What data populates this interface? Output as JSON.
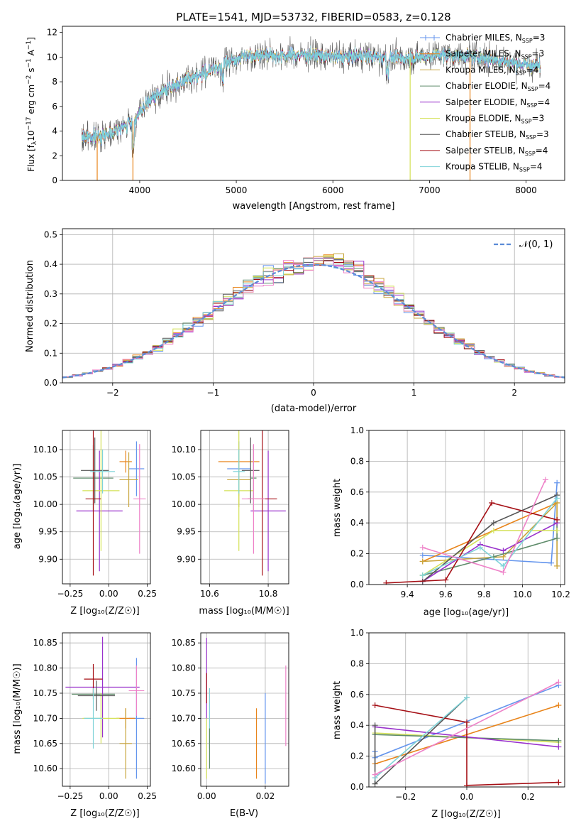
{
  "colors": {
    "Chabrier MILES": "#6495ed",
    "Salpeter MILES": "#e8841a",
    "Kroupa MILES": "#c8a53c",
    "Chabrier ELODIE": "#5f8c6b",
    "Salpeter ELODIE": "#9932cc",
    "Kroupa ELODIE": "#d4e157",
    "Chabrier STELIB": "#555555",
    "Salpeter STELIB": "#a50f15",
    "Kroupa STELIB": "#7fd3d8",
    "kroupa_miles_weights": "#ee82c8",
    "gauss": "#5b8bd6",
    "grid": "#b0b0b0"
  },
  "chart_data": [
    {
      "id": "spectrum",
      "type": "line",
      "title": "PLATE=1541, MJD=53732, FIBERID=0583, z=0.128",
      "xlabel": "wavelength [Angstrom, rest frame]",
      "ylabel": "Flux [f_λ10^-17 erg cm^-2 s^-1 A^-1]",
      "xlim": [
        3200,
        8400
      ],
      "ylim": [
        0,
        12.5
      ],
      "xticks": [
        "4000",
        "5000",
        "6000",
        "7000",
        "8000"
      ],
      "yticks": [
        "0",
        "2",
        "4",
        "6",
        "8",
        "10",
        "12"
      ],
      "grid": false,
      "legend_position": "upper-right",
      "legend": [
        {
          "prefix": "Chabrier MILES, N",
          "sub": "SSP",
          "suffix": "=3"
        },
        {
          "prefix": "Salpeter MILES, N",
          "sub": "SSP",
          "suffix": "=3"
        },
        {
          "prefix": "Kroupa MILES, N",
          "sub": "SSP",
          "suffix": "=4"
        },
        {
          "prefix": "Chabrier ELODIE, N",
          "sub": "SSP",
          "suffix": "=4"
        },
        {
          "prefix": "Salpeter ELODIE, N",
          "sub": "SSP",
          "suffix": "=4"
        },
        {
          "prefix": "Kroupa ELODIE, N",
          "sub": "SSP",
          "suffix": "=3"
        },
        {
          "prefix": "Chabrier STELIB, N",
          "sub": "SSP",
          "suffix": "=3"
        },
        {
          "prefix": "Salpeter STELIB, N",
          "sub": "SSP",
          "suffix": "=4"
        },
        {
          "prefix": "Kroupa STELIB, N",
          "sub": "SSP",
          "suffix": "=4"
        }
      ],
      "continuum": {
        "x": [
          3400,
          3600,
          3800,
          3950,
          4100,
          4300,
          4500,
          4700,
          4900,
          5100,
          5300,
          5500,
          5700,
          5900,
          6100,
          6300,
          6500,
          6700,
          6900,
          7100,
          7300,
          7500,
          7700,
          7900,
          8150
        ],
        "y": [
          3.5,
          3.6,
          4.2,
          4.9,
          6.5,
          7.5,
          8.2,
          8.8,
          9.5,
          10.2,
          10.2,
          10.1,
          10.2,
          10.1,
          10.0,
          10.1,
          10.0,
          9.9,
          10.0,
          10.2,
          10.1,
          10.0,
          9.8,
          9.5,
          9.2
        ]
      },
      "dropouts": [
        {
          "x": 3560,
          "series": "Salpeter MILES"
        },
        {
          "x": 3930,
          "series": "Salpeter MILES"
        },
        {
          "x": 6800,
          "series": "Kroupa ELODIE"
        },
        {
          "x": 7420,
          "series": "Salpeter MILES"
        }
      ]
    },
    {
      "id": "residuals",
      "type": "step",
      "xlabel": "(data-model)/error",
      "ylabel": "Normed distribution",
      "xlim": [
        -2.5,
        2.5
      ],
      "ylim": [
        0,
        0.52
      ],
      "xticks": [
        {
          "v": -2,
          "label": "−2"
        },
        {
          "v": -1,
          "label": "−1"
        },
        {
          "v": 0,
          "label": "0"
        },
        {
          "v": 1,
          "label": "1"
        },
        {
          "v": 2,
          "label": "2"
        }
      ],
      "yticks": [
        {
          "v": 0,
          "label": "0.0"
        },
        {
          "v": 0.1,
          "label": "0.1"
        },
        {
          "v": 0.2,
          "label": "0.2"
        },
        {
          "v": 0.3,
          "label": "0.3"
        },
        {
          "v": 0.4,
          "label": "0.4"
        },
        {
          "v": 0.5,
          "label": "0.5"
        }
      ],
      "grid": true,
      "bin_width": 0.1,
      "legend_label": "𝒩(0, 1)",
      "legend_position": "upper-right",
      "reference_curve": "gaussian mean 0, sigma 1"
    },
    {
      "id": "age_vs_Z",
      "type": "errorbar",
      "xlabel": "Z [log₁₀(Z/Z☉)]",
      "ylabel": "age  [log₁₀(age/yr)]",
      "xlim": [
        -0.3,
        0.27
      ],
      "ylim": [
        9.855,
        10.135
      ],
      "xticks": [
        {
          "v": -0.25,
          "label": "−0.25"
        },
        {
          "v": 0,
          "label": "0.00"
        },
        {
          "v": 0.25,
          "label": "0.25"
        }
      ],
      "yticks": [
        {
          "v": 9.9,
          "label": "9.90"
        },
        {
          "v": 9.95,
          "label": "9.95"
        },
        {
          "v": 10,
          "label": "10.00"
        },
        {
          "v": 10.05,
          "label": "10.05"
        },
        {
          "v": 10.1,
          "label": "10.10"
        }
      ],
      "grid": true,
      "points": [
        {
          "series": "Chabrier MILES",
          "x": 0.18,
          "xerr": 0.05,
          "y": 10.065,
          "yerr": 0.05
        },
        {
          "series": "Salpeter MILES",
          "x": 0.11,
          "xerr": 0.04,
          "y": 10.078,
          "yerr": 0.02
        },
        {
          "series": "Kroupa MILES",
          "x": 0.13,
          "xerr": 0.06,
          "y": 10.045,
          "yerr": 0.05
        },
        {
          "series": "Chabrier ELODIE",
          "x": -0.1,
          "xerr": 0.13,
          "y": 10.048,
          "yerr": 0.06
        },
        {
          "series": "Salpeter ELODIE",
          "x": -0.06,
          "xerr": 0.15,
          "y": 9.988,
          "yerr": 0.11
        },
        {
          "series": "Kroupa ELODIE",
          "x": -0.05,
          "xerr": 0.12,
          "y": 10.025,
          "yerr": 0.11
        },
        {
          "series": "Chabrier STELIB",
          "x": -0.09,
          "xerr": 0.09,
          "y": 10.062,
          "yerr": 0.06
        },
        {
          "series": "Salpeter STELIB",
          "x": -0.1,
          "xerr": 0.05,
          "y": 10.01,
          "yerr": 0.14
        },
        {
          "series": "Kroupa STELIB",
          "x": -0.04,
          "xerr": 0.08,
          "y": 10.06,
          "yerr": 0.04
        },
        {
          "series": "kroupa_miles_weights",
          "x": 0.2,
          "xerr": 0.04,
          "y": 10.01,
          "yerr": 0.1
        }
      ]
    },
    {
      "id": "age_vs_mass",
      "type": "errorbar",
      "xlabel": "mass [log₁₀(M/M☉)]",
      "ylabel": "",
      "xlim": [
        10.57,
        10.87
      ],
      "ylim": [
        9.855,
        10.135
      ],
      "xticks": [
        {
          "v": 10.6,
          "label": "10.6"
        },
        {
          "v": 10.8,
          "label": "10.8"
        }
      ],
      "yticks": [
        {
          "v": 9.9,
          "label": "9.90"
        },
        {
          "v": 9.95,
          "label": "9.95"
        },
        {
          "v": 10,
          "label": "10.00"
        },
        {
          "v": 10.05,
          "label": "10.05"
        },
        {
          "v": 10.1,
          "label": "10.10"
        }
      ],
      "grid": true,
      "points": [
        {
          "series": "Chabrier MILES",
          "x": 10.7,
          "xerr": 0.04,
          "y": 10.065,
          "yerr": 0.05
        },
        {
          "series": "Salpeter MILES",
          "x": 10.7,
          "xerr": 0.07,
          "y": 10.078,
          "yerr": 0.02
        },
        {
          "series": "Kroupa MILES",
          "x": 10.7,
          "xerr": 0.04,
          "y": 10.045,
          "yerr": 0.05
        },
        {
          "series": "Chabrier ELODIE",
          "x": 10.75,
          "xerr": 0.01,
          "y": 10.048,
          "yerr": 0.06
        },
        {
          "series": "Salpeter ELODIE",
          "x": 10.8,
          "xerr": 0.06,
          "y": 9.988,
          "yerr": 0.11
        },
        {
          "series": "Kroupa ELODIE",
          "x": 10.7,
          "xerr": 0.05,
          "y": 10.025,
          "yerr": 0.11
        },
        {
          "series": "Chabrier STELIB",
          "x": 10.74,
          "xerr": 0.03,
          "y": 10.062,
          "yerr": 0.06
        },
        {
          "series": "Salpeter STELIB",
          "x": 10.78,
          "xerr": 0.05,
          "y": 10.01,
          "yerr": 0.14
        },
        {
          "series": "Kroupa STELIB",
          "x": 10.7,
          "xerr": 0.02,
          "y": 10.06,
          "yerr": 0.04
        },
        {
          "series": "kroupa_miles_weights",
          "x": 10.75,
          "xerr": 0.04,
          "y": 10.01,
          "yerr": 0.1
        }
      ]
    },
    {
      "id": "mass_weight_vs_age",
      "type": "line",
      "xlabel": "age  [log₁₀(age/yr)]",
      "ylabel": "mass weight",
      "xlim": [
        9.2,
        10.22
      ],
      "ylim": [
        0,
        1.0
      ],
      "xticks": [
        {
          "v": 9.4,
          "label": "9.4"
        },
        {
          "v": 9.6,
          "label": "9.6"
        },
        {
          "v": 9.8,
          "label": "9.8"
        },
        {
          "v": 10.0,
          "label": "10.0"
        },
        {
          "v": 10.2,
          "label": "10.2"
        }
      ],
      "yticks": [
        {
          "v": 0,
          "label": "0.0"
        },
        {
          "v": 0.2,
          "label": "0.2"
        },
        {
          "v": 0.4,
          "label": "0.4"
        },
        {
          "v": 0.6,
          "label": "0.6"
        },
        {
          "v": 0.8,
          "label": "0.8"
        },
        {
          "v": 1.0,
          "label": "1.0"
        }
      ],
      "grid": true,
      "series": [
        {
          "name": "Chabrier MILES",
          "x": [
            9.48,
            10.15,
            10.18
          ],
          "y": [
            0.19,
            0.14,
            0.66
          ]
        },
        {
          "name": "Salpeter MILES",
          "x": [
            9.48,
            10.18,
            10.18
          ],
          "y": [
            0.15,
            0.53,
            0.12
          ]
        },
        {
          "name": "Kroupa MILES",
          "x": [
            9.48,
            9.9,
            10.18,
            10.18
          ],
          "y": [
            0.15,
            0.18,
            0.53,
            0.12
          ]
        },
        {
          "name": "Chabrier ELODIE",
          "x": [
            9.48,
            9.85,
            10.18,
            10.18
          ],
          "y": [
            0.06,
            0.18,
            0.3,
            0.4
          ]
        },
        {
          "name": "Salpeter ELODIE",
          "x": [
            9.48,
            9.78,
            9.9,
            10.18
          ],
          "y": [
            0.02,
            0.26,
            0.22,
            0.4
          ]
        },
        {
          "name": "Kroupa ELODIE",
          "x": [
            9.48,
            9.85,
            10.18
          ],
          "y": [
            0.06,
            0.35,
            0.35
          ]
        },
        {
          "name": "Chabrier STELIB",
          "x": [
            9.48,
            9.85,
            10.18
          ],
          "y": [
            0.02,
            0.4,
            0.58
          ]
        },
        {
          "name": "Salpeter STELIB",
          "x": [
            9.29,
            9.6,
            9.84,
            10.18
          ],
          "y": [
            0.01,
            0.03,
            0.53,
            0.42
          ]
        },
        {
          "name": "Kroupa STELIB",
          "x": [
            9.48,
            9.78,
            9.9,
            10.18
          ],
          "y": [
            0.06,
            0.24,
            0.12,
            0.56
          ]
        },
        {
          "name": "kroupa_miles_weights",
          "x": [
            9.48,
            9.9,
            10.12
          ],
          "y": [
            0.24,
            0.08,
            0.68
          ]
        }
      ]
    },
    {
      "id": "mass_vs_Z",
      "type": "errorbar",
      "xlabel": "Z [log₁₀(Z/Z☉)]",
      "ylabel": "mass [log₁₀(M/M☉)]",
      "xlim": [
        -0.3,
        0.27
      ],
      "ylim": [
        10.565,
        10.87
      ],
      "xticks": [
        {
          "v": -0.25,
          "label": "−0.25"
        },
        {
          "v": 0,
          "label": "0.00"
        },
        {
          "v": 0.25,
          "label": "0.25"
        }
      ],
      "yticks": [
        {
          "v": 10.6,
          "label": "10.60"
        },
        {
          "v": 10.65,
          "label": "10.65"
        },
        {
          "v": 10.7,
          "label": "10.70"
        },
        {
          "v": 10.75,
          "label": "10.75"
        },
        {
          "v": 10.8,
          "label": "10.80"
        },
        {
          "v": 10.85,
          "label": "10.85"
        }
      ],
      "grid": true,
      "points": [
        {
          "series": "Chabrier MILES",
          "x": 0.18,
          "xerr": 0.05,
          "y": 10.7,
          "yerr": 0.12
        },
        {
          "series": "Salpeter MILES",
          "x": 0.11,
          "xerr": 0.06,
          "y": 10.7,
          "yerr": 0.02
        },
        {
          "series": "Kroupa MILES",
          "x": 0.11,
          "xerr": 0.04,
          "y": 10.65,
          "yerr": 0.07
        },
        {
          "series": "Chabrier ELODIE",
          "x": -0.1,
          "xerr": 0.14,
          "y": 10.748,
          "yerr": 0.01
        },
        {
          "series": "Salpeter ELODIE",
          "x": -0.04,
          "xerr": 0.24,
          "y": 10.762,
          "yerr": 0.1
        },
        {
          "series": "Kroupa ELODIE",
          "x": -0.05,
          "xerr": 0.12,
          "y": 10.7,
          "yerr": 0.05
        },
        {
          "series": "Chabrier STELIB",
          "x": -0.08,
          "xerr": 0.12,
          "y": 10.745,
          "yerr": 0.03
        },
        {
          "series": "Salpeter STELIB",
          "x": -0.1,
          "xerr": 0.06,
          "y": 10.778,
          "yerr": 0.03
        },
        {
          "series": "Kroupa STELIB",
          "x": -0.1,
          "xerr": 0.06,
          "y": 10.7,
          "yerr": 0.06
        },
        {
          "series": "kroupa_miles_weights",
          "x": 0.18,
          "xerr": 0.05,
          "y": 10.755,
          "yerr": 0.05
        }
      ]
    },
    {
      "id": "mass_vs_ebv",
      "type": "errorbar",
      "xlabel": "E(B-V)",
      "ylabel": "",
      "xlim": [
        -0.002,
        0.028
      ],
      "ylim": [
        10.565,
        10.87
      ],
      "xticks": [
        {
          "v": 0,
          "label": "0.00"
        },
        {
          "v": 0.02,
          "label": "0.02"
        }
      ],
      "yticks": [
        {
          "v": 10.6,
          "label": "10.60"
        },
        {
          "v": 10.65,
          "label": "10.65"
        },
        {
          "v": 10.7,
          "label": "10.70"
        },
        {
          "v": 10.75,
          "label": "10.75"
        },
        {
          "v": 10.8,
          "label": "10.80"
        },
        {
          "v": 10.85,
          "label": "10.85"
        }
      ],
      "grid": true,
      "points": [
        {
          "series": "Chabrier MILES",
          "x": 0.02,
          "xerr": 0,
          "y": 10.66,
          "yerr": 0.09
        },
        {
          "series": "Salpeter MILES",
          "x": 0.017,
          "xerr": 0,
          "y": 10.65,
          "yerr": 0.07
        },
        {
          "series": "Kroupa ELODIE",
          "x": 0.0,
          "xerr": 0,
          "y": 10.64,
          "yerr": 0.06
        },
        {
          "series": "Salpeter ELODIE",
          "x": 0.0,
          "xerr": 0,
          "y": 10.78,
          "yerr": 0.08
        },
        {
          "series": "Salpeter STELIB",
          "x": 0.0,
          "xerr": 0,
          "y": 10.76,
          "yerr": 0.03
        },
        {
          "series": "Kroupa STELIB",
          "x": 0.001,
          "xerr": 0,
          "y": 10.7,
          "yerr": 0.06
        },
        {
          "series": "Chabrier ELODIE",
          "x": 0.001,
          "xerr": 0,
          "y": 10.64,
          "yerr": 0.04
        },
        {
          "series": "kroupa_miles_weights",
          "x": 0.027,
          "xerr": 0,
          "y": 10.725,
          "yerr": 0.08
        }
      ]
    },
    {
      "id": "mass_weight_vs_Z",
      "type": "line",
      "xlabel": "Z [log₁₀(Z/Z☉)]",
      "ylabel": "mass weight",
      "xlim": [
        -0.32,
        0.32
      ],
      "ylim": [
        0,
        1.0
      ],
      "xticks": [
        {
          "v": -0.2,
          "label": "−0.2"
        },
        {
          "v": 0,
          "label": "0.0"
        },
        {
          "v": 0.2,
          "label": "0.2"
        }
      ],
      "yticks": [
        {
          "v": 0,
          "label": "0.0"
        },
        {
          "v": 0.2,
          "label": "0.2"
        },
        {
          "v": 0.4,
          "label": "0.4"
        },
        {
          "v": 0.6,
          "label": "0.6"
        },
        {
          "v": 0.8,
          "label": "0.8"
        },
        {
          "v": 1.0,
          "label": "1.0"
        }
      ],
      "grid": true,
      "series": [
        {
          "name": "Chabrier MILES",
          "x": [
            -0.3,
            -0.3,
            0.3
          ],
          "y": [
            0.23,
            0.19,
            0.66
          ]
        },
        {
          "name": "Salpeter MILES",
          "x": [
            -0.3,
            0.3
          ],
          "y": [
            0.15,
            0.53
          ]
        },
        {
          "name": "Kroupa ELODIE",
          "x": [
            -0.3,
            0.3
          ],
          "y": [
            0.35,
            0.29
          ]
        },
        {
          "name": "Chabrier ELODIE",
          "x": [
            -0.3,
            0.3
          ],
          "y": [
            0.34,
            0.3
          ]
        },
        {
          "name": "Salpeter ELODIE",
          "x": [
            -0.3,
            0.3
          ],
          "y": [
            0.39,
            0.26
          ]
        },
        {
          "name": "Chabrier STELIB",
          "x": [
            -0.3,
            -0.3,
            0.0
          ],
          "y": [
            0.4,
            0.02,
            0.58
          ]
        },
        {
          "name": "Salpeter STELIB",
          "x": [
            -0.3,
            0.0,
            0.0,
            0.3
          ],
          "y": [
            0.53,
            0.42,
            0.01,
            0.03
          ]
        },
        {
          "name": "Kroupa STELIB",
          "x": [
            -0.3,
            0.0
          ],
          "y": [
            0.06,
            0.58
          ]
        },
        {
          "name": "kroupa_miles_weights",
          "x": [
            -0.3,
            0.3
          ],
          "y": [
            0.08,
            0.68
          ]
        }
      ]
    }
  ]
}
